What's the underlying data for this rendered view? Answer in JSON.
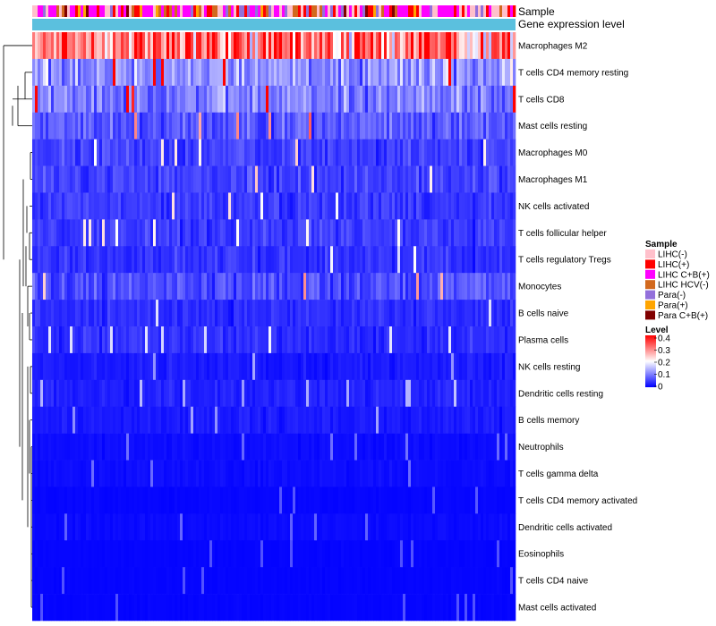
{
  "chart_data": {
    "type": "heatmap",
    "annotation_tracks": [
      "Sample",
      "Gene expression level"
    ],
    "rows": [
      {
        "name": "Macrophages M2",
        "level": 0.3
      },
      {
        "name": "T cells CD4 memory resting",
        "level": 0.12
      },
      {
        "name": "T cells CD8",
        "level": 0.1
      },
      {
        "name": "Mast cells resting",
        "level": 0.07
      },
      {
        "name": "Macrophages M0",
        "level": 0.05
      },
      {
        "name": "Macrophages M1",
        "level": 0.05
      },
      {
        "name": "NK cells activated",
        "level": 0.045
      },
      {
        "name": "T cells follicular helper",
        "level": 0.045
      },
      {
        "name": "T cells regulatory  Tregs",
        "level": 0.04
      },
      {
        "name": "Monocytes",
        "level": 0.06
      },
      {
        "name": "B cells naive",
        "level": 0.035
      },
      {
        "name": "Plasma cells",
        "level": 0.035
      },
      {
        "name": "NK cells resting",
        "level": 0.02
      },
      {
        "name": "Dendritic cells resting",
        "level": 0.025
      },
      {
        "name": "B cells memory",
        "level": 0.02
      },
      {
        "name": "Neutrophils",
        "level": 0.01
      },
      {
        "name": "T cells gamma delta",
        "level": 0.01
      },
      {
        "name": "T cells CD4 memory activated",
        "level": 0.005
      },
      {
        "name": "Dendritic cells activated",
        "level": 0.008
      },
      {
        "name": "Eosinophils",
        "level": 0.004
      },
      {
        "name": "T cells CD4 naive",
        "level": 0.004
      },
      {
        "name": "Mast cells activated",
        "level": 0.004
      }
    ],
    "sample_legend": {
      "title": "Sample",
      "items": [
        {
          "label": "LIHC(-)",
          "color": "#ffc0cb"
        },
        {
          "label": "LIHC(+)",
          "color": "#ff0000"
        },
        {
          "label": "LIHC C+B(+)",
          "color": "#ff00ff"
        },
        {
          "label": "LIHC HCV(-)",
          "color": "#d2691e"
        },
        {
          "label": "Para(-)",
          "color": "#9370db"
        },
        {
          "label": "Para(+)",
          "color": "#ffa500"
        },
        {
          "label": "Para C+B(+)",
          "color": "#800000"
        }
      ]
    },
    "level_legend": {
      "title": "Level",
      "ticks": [
        "0.4",
        "0.3",
        "0.2",
        "0.1",
        "0"
      ],
      "range": [
        0,
        0.4
      ],
      "colors": [
        "#0000ff",
        "#ffffff",
        "#ff0000"
      ]
    },
    "gene_expression_color": "#5bc0de"
  }
}
